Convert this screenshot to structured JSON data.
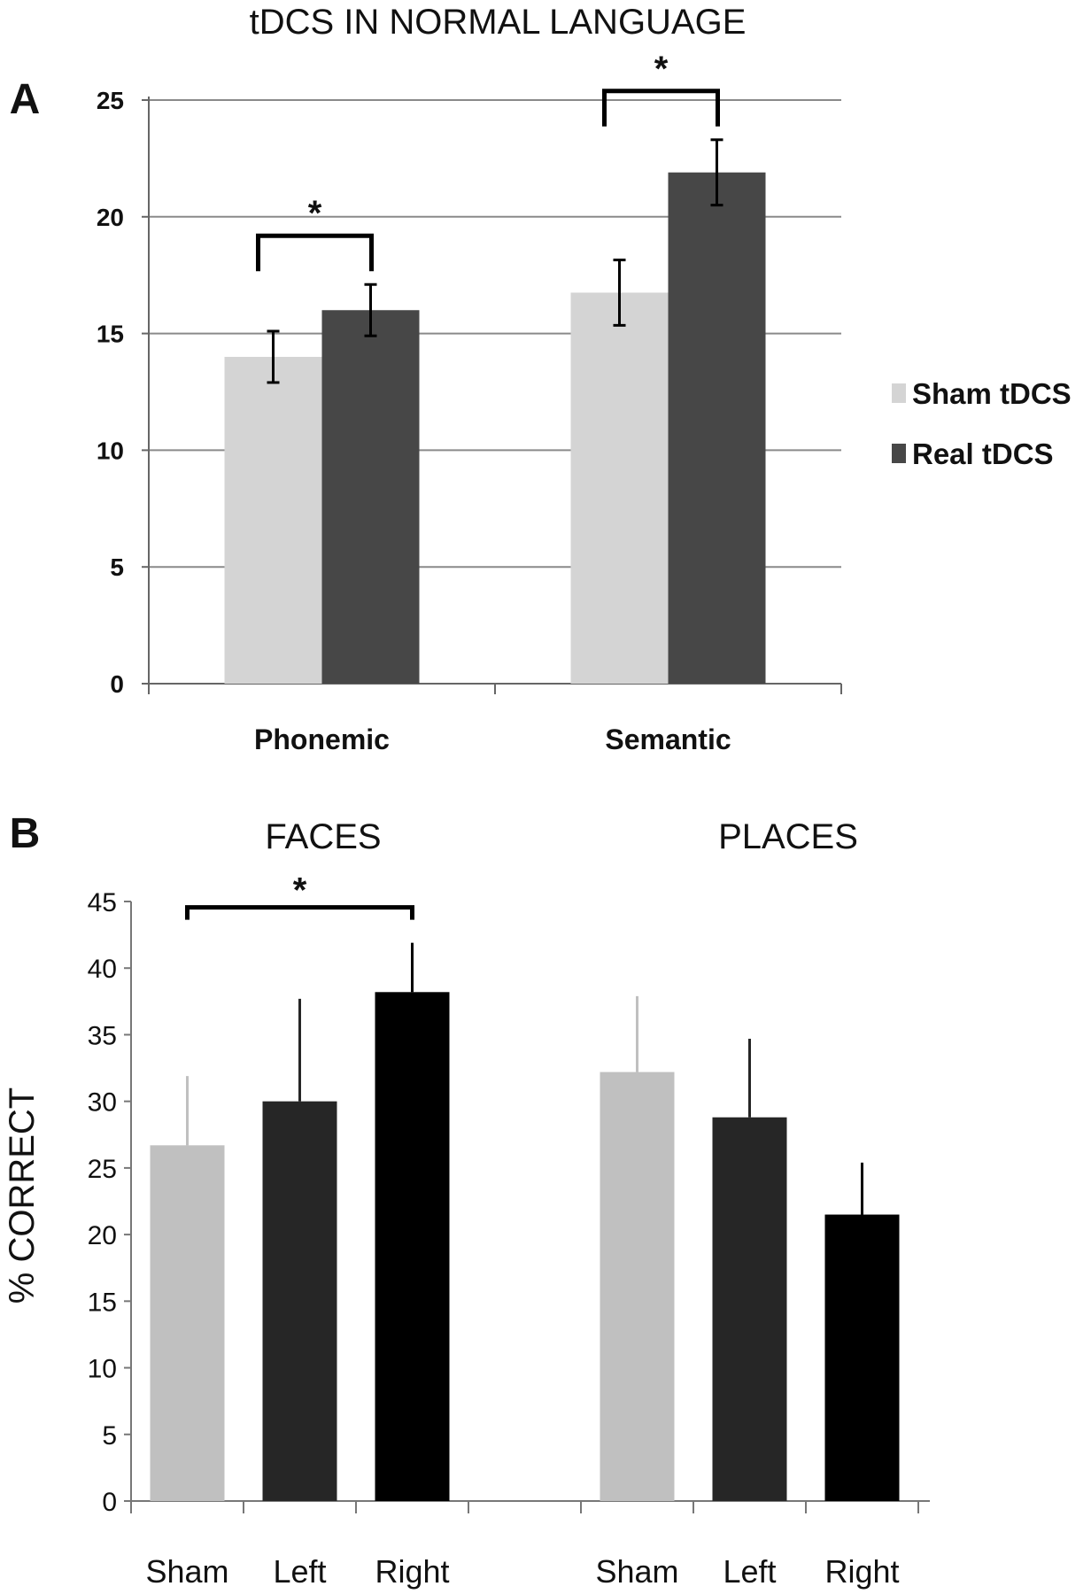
{
  "chart_data": [
    {
      "type": "bar",
      "panel_label": "A",
      "title": "tDCS IN NORMAL LANGUAGE",
      "categories": [
        "Phonemic",
        "Semantic"
      ],
      "series": [
        {
          "name": "Sham tDCS",
          "color": "#d4d4d4",
          "values": [
            14.0,
            16.75
          ],
          "errors": [
            1.1,
            1.4
          ]
        },
        {
          "name": "Real tDCS",
          "color": "#474747",
          "values": [
            16.0,
            21.9
          ],
          "errors": [
            1.1,
            1.4
          ]
        }
      ],
      "ylim": [
        0,
        25
      ],
      "yticks": [
        "0",
        "5",
        "10",
        "15",
        "20",
        "25"
      ],
      "grid": true,
      "legend_position": "right",
      "significance": [
        {
          "category": "Phonemic",
          "label": "*"
        },
        {
          "category": "Semantic",
          "label": "*"
        }
      ]
    },
    {
      "type": "bar",
      "panel_label": "B",
      "ylabel": "% CORRECT",
      "groups": [
        {
          "label": "FACES",
          "categories": [
            "Sham",
            "Left",
            "Right"
          ],
          "values": [
            26.7,
            30.0,
            38.2
          ],
          "error_upper": [
            31.9,
            37.7,
            41.9
          ]
        },
        {
          "label": "PLACES",
          "categories": [
            "Sham",
            "Left",
            "Right"
          ],
          "values": [
            32.2,
            28.8,
            21.5
          ],
          "error_upper": [
            37.9,
            34.7,
            25.4
          ]
        }
      ],
      "colors": {
        "Sham": "#c0c0c0",
        "Left": "#262626",
        "Right": "#000000"
      },
      "ylim": [
        0,
        45
      ],
      "yticks": [
        "0",
        "5",
        "10",
        "15",
        "20",
        "25",
        "30",
        "35",
        "40",
        "45"
      ],
      "grid": false,
      "significance": [
        {
          "group": "FACES",
          "from": "Sham",
          "to": "Right",
          "label": "*"
        }
      ]
    }
  ]
}
